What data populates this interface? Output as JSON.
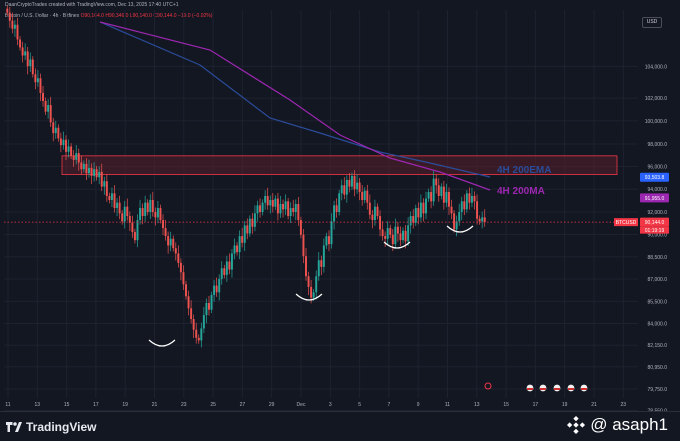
{
  "header": {
    "line1": "DaanCryptoTrades created with TradingView.com, Dec 13, 2025 17:40 UTC+1",
    "symbol": "Bitcoin / U.S. Dollar · 4h · Bitfinex",
    "ohlc": "O90,164.0 H90,346.0 L90,140.0 C90,144.0",
    "change": "−19.0 (−0.02%)"
  },
  "currency": "USD",
  "footer": {
    "brand": "TradingView",
    "handle": "@ asaph1"
  },
  "colors": {
    "background": "#131722",
    "grid": "#1e2230",
    "up": "#26a69a",
    "down": "#ef5350",
    "ema": "#2b4c9a",
    "ma": "#9c27b0",
    "zone": "#5a1f2c",
    "zone_border": "#f23645",
    "annotation": "#ffffff"
  },
  "chart_data": {
    "type": "candlestick",
    "x_ticks": [
      "11",
      "13",
      "15",
      "17",
      "19",
      "21",
      "23",
      "25",
      "27",
      "29",
      "Dec",
      "3",
      "5",
      "7",
      "9",
      "11",
      "13",
      "15",
      "17",
      "19",
      "21",
      "23"
    ],
    "y_ticks": [
      "104,000.0",
      "102,000.0",
      "100,000.0",
      "98,000.0",
      "96,000.0",
      "94,000.0",
      "92,000.0",
      "90,000.0",
      "88,500.0",
      "87,000.0",
      "85,500.0",
      "84,000.0",
      "82,150.0",
      "80,950.0",
      "79,750.0",
      "78,550.0",
      "77,750.0"
    ],
    "ylim": [
      77000,
      106000
    ],
    "resistance_zone": [
      93700,
      95100
    ],
    "ema_label": "4H 200EMA",
    "ma_label": "4H 200MA",
    "price_tags": [
      {
        "value": 93503.8,
        "label": "93,503.8",
        "color": "#2962ff"
      },
      {
        "value": 91955.0,
        "label": "91,955.0",
        "color": "#9c27b0"
      },
      {
        "value": 90144.0,
        "label": "90,144.0",
        "color": "#f23645"
      }
    ],
    "last_symbol": "BTCUSD",
    "countdown": "01:19:19",
    "candles_close": [
      105800,
      105200,
      104600,
      104900,
      103800,
      103200,
      102600,
      102900,
      101800,
      102300,
      101200,
      100600,
      100900,
      99800,
      99200,
      98400,
      98900,
      97600,
      96800,
      97200,
      96400,
      95900,
      96300,
      95400,
      95800,
      95100,
      94800,
      95300,
      94600,
      94100,
      94500,
      93800,
      94200,
      93600,
      94100,
      93500,
      93900,
      92800,
      93200,
      92100,
      91800,
      92300,
      91200,
      91600,
      90800,
      90200,
      91300,
      90600,
      90100,
      89400,
      88800,
      90300,
      91200,
      90600,
      91600,
      90900,
      91800,
      90900,
      90500,
      91200,
      90300,
      89700,
      89100,
      88400,
      88900,
      88200,
      87800,
      87100,
      86400,
      85500,
      84600,
      83700,
      82900,
      82100,
      81500,
      81300,
      82200,
      83200,
      84100,
      83600,
      84700,
      85400,
      84900,
      85900,
      86700,
      86200,
      87200,
      86600,
      87800,
      88400,
      87900,
      89100,
      88600,
      89900,
      89300,
      90400,
      89800,
      90800,
      91400,
      90900,
      91600,
      92100,
      91400,
      91800,
      91300,
      91900,
      90800,
      91500,
      91100,
      91700,
      90600,
      91200,
      90900,
      91500,
      90300,
      89200,
      87600,
      86100,
      85300,
      84500,
      84900,
      86100,
      87300,
      86800,
      88400,
      89100,
      88500,
      90200,
      91400,
      90900,
      92300,
      92900,
      92200,
      93300,
      92800,
      93600,
      92600,
      93100,
      92400,
      91800,
      92500,
      91600,
      90700,
      90300,
      91300,
      90600,
      89600,
      89100,
      88900,
      89700,
      89200,
      88500,
      89800,
      89300,
      88800,
      89500,
      88700,
      89900,
      90600,
      90100,
      91200,
      90500,
      91600,
      90800,
      91900,
      92400,
      91700,
      93400,
      92900,
      92100,
      92800,
      91600,
      92400,
      91300,
      90800,
      89600,
      90200,
      90900,
      91700,
      91100,
      92300,
      91600,
      92100,
      91700,
      90400,
      90200,
      90500,
      90144
    ]
  }
}
